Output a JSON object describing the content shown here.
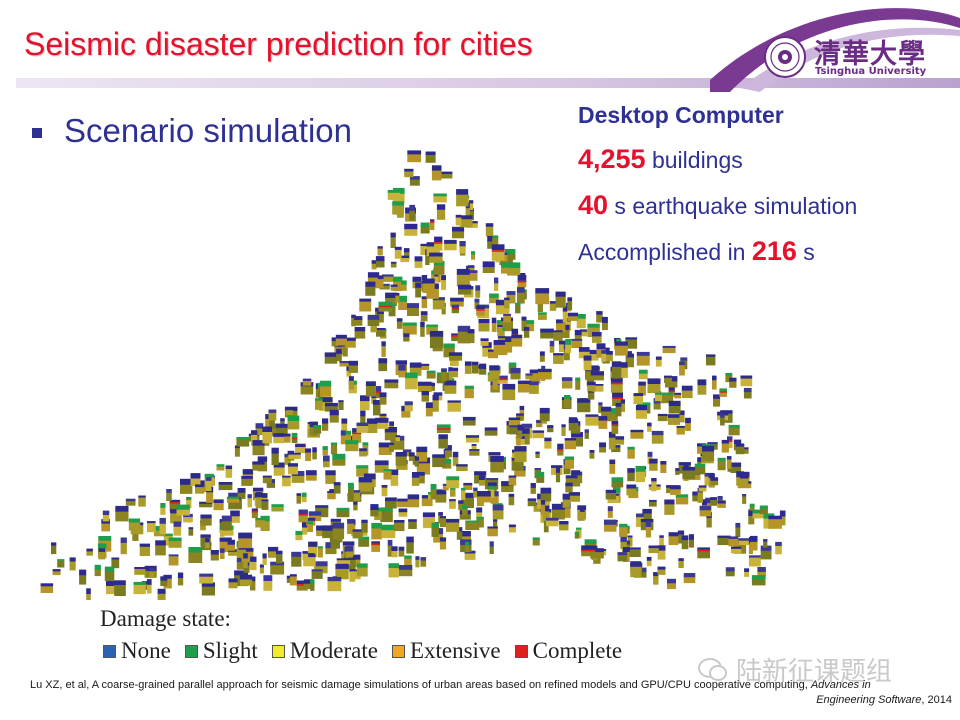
{
  "slide": {
    "title": "Seismic disaster prediction for cities",
    "bullet": "Scenario simulation"
  },
  "logo": {
    "chinese": "清華大學",
    "english": "Tsinghua University",
    "color": "#6a2c84"
  },
  "info": {
    "heading": "Desktop Computer",
    "buildings_value": "4,255",
    "buildings_unit": " buildings",
    "duration_value": "40",
    "duration_unit": " s earthquake simulation",
    "time_prefix": "Accomplished in ",
    "time_value": "216",
    "time_unit": " s"
  },
  "legend": {
    "title": "Damage state:",
    "items": [
      {
        "label": "None",
        "color": "#2b63b3"
      },
      {
        "label": "Slight",
        "color": "#1e9e4a"
      },
      {
        "label": "Moderate",
        "color": "#f2ea2a"
      },
      {
        "label": "Extensive",
        "color": "#f0a823"
      },
      {
        "label": "Complete",
        "color": "#e0201c"
      }
    ]
  },
  "watermark": "陆新征课题组",
  "citation": {
    "line1": "Lu XZ, et al, A coarse-grained parallel approach for seismic damage simulations of urban areas based on refined models and GPU/CPU cooperative computing, ",
    "journal_line1": "Advances in",
    "journal_line2": "Engineering Software",
    "year": ", 2014"
  },
  "colors": {
    "title_red": "#e8102c",
    "text_blue": "#2e3192",
    "building_top": "#2c2a8c",
    "building_side": "#8c8420"
  }
}
